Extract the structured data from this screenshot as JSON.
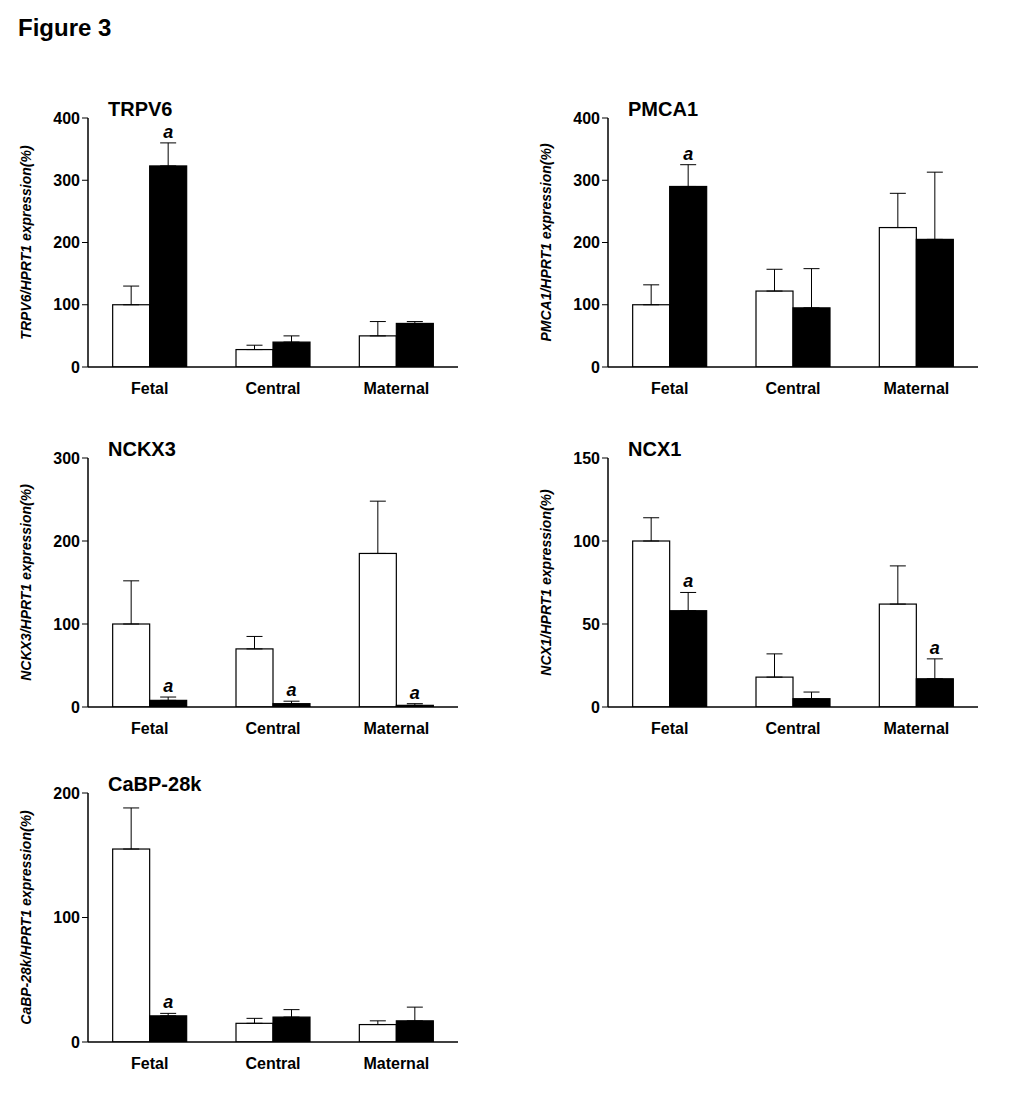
{
  "title": "Figure 3",
  "chart_data": [
    {
      "type": "bar",
      "title": "TRPV6",
      "y_label": "TRPV6/HPRT1 expression(%)",
      "categories": [
        "Fetal",
        "Central",
        "Maternal"
      ],
      "ylim": [
        0,
        400
      ],
      "yticks": [
        0,
        100,
        200,
        300,
        400
      ],
      "grid": false,
      "series": [
        {
          "color": "#ffffff",
          "values": [
            100,
            28,
            50
          ],
          "errors": [
            30,
            7,
            23
          ],
          "annotations": [
            null,
            null,
            null
          ]
        },
        {
          "color": "#000000",
          "values": [
            323,
            40,
            70
          ],
          "errors": [
            37,
            10,
            3
          ],
          "annotations": [
            "a",
            null,
            null
          ]
        }
      ]
    },
    {
      "type": "bar",
      "title": "PMCA1",
      "y_label": "PMCA1/HPRT1 expression(%)",
      "categories": [
        "Fetal",
        "Central",
        "Maternal"
      ],
      "ylim": [
        0,
        400
      ],
      "yticks": [
        0,
        100,
        200,
        300,
        400
      ],
      "grid": false,
      "series": [
        {
          "color": "#ffffff",
          "values": [
            100,
            122,
            224
          ],
          "errors": [
            32,
            35,
            55
          ],
          "annotations": [
            null,
            null,
            null
          ]
        },
        {
          "color": "#000000",
          "values": [
            290,
            95,
            205
          ],
          "errors": [
            35,
            63,
            108
          ],
          "annotations": [
            "a",
            null,
            null
          ]
        }
      ]
    },
    {
      "type": "bar",
      "title": "NCKX3",
      "y_label": "NCKX3/HPRT1 expression(%)",
      "categories": [
        "Fetal",
        "Central",
        "Maternal"
      ],
      "ylim": [
        0,
        300
      ],
      "yticks": [
        0,
        100,
        200,
        300
      ],
      "grid": false,
      "series": [
        {
          "color": "#ffffff",
          "values": [
            100,
            70,
            185
          ],
          "errors": [
            52,
            15,
            63
          ],
          "annotations": [
            null,
            null,
            null
          ]
        },
        {
          "color": "#000000",
          "values": [
            8,
            4,
            2
          ],
          "errors": [
            4,
            3,
            2
          ],
          "annotations": [
            "a",
            "a",
            "a"
          ]
        }
      ]
    },
    {
      "type": "bar",
      "title": "NCX1",
      "y_label": "NCX1/HPRT1 expression(%)",
      "categories": [
        "Fetal",
        "Central",
        "Maternal"
      ],
      "ylim": [
        0,
        150
      ],
      "yticks": [
        0,
        50,
        100,
        150
      ],
      "grid": false,
      "series": [
        {
          "color": "#ffffff",
          "values": [
            100,
            18,
            62
          ],
          "errors": [
            14,
            14,
            23
          ],
          "annotations": [
            null,
            null,
            null
          ]
        },
        {
          "color": "#000000",
          "values": [
            58,
            5,
            17
          ],
          "errors": [
            11,
            4,
            12
          ],
          "annotations": [
            "a",
            null,
            "a"
          ]
        }
      ]
    },
    {
      "type": "bar",
      "title": "CaBP-28k",
      "y_label": "CaBP-28k/HPRT1 expression(%)",
      "categories": [
        "Fetal",
        "Central",
        "Maternal"
      ],
      "ylim": [
        0,
        200
      ],
      "yticks": [
        0,
        100,
        200
      ],
      "grid": false,
      "series": [
        {
          "color": "#ffffff",
          "values": [
            155,
            15,
            14
          ],
          "errors": [
            33,
            4,
            3
          ],
          "annotations": [
            null,
            null,
            null
          ]
        },
        {
          "color": "#000000",
          "values": [
            21,
            20,
            17
          ],
          "errors": [
            2,
            6,
            11
          ],
          "annotations": [
            "a",
            null,
            null
          ]
        }
      ]
    }
  ]
}
